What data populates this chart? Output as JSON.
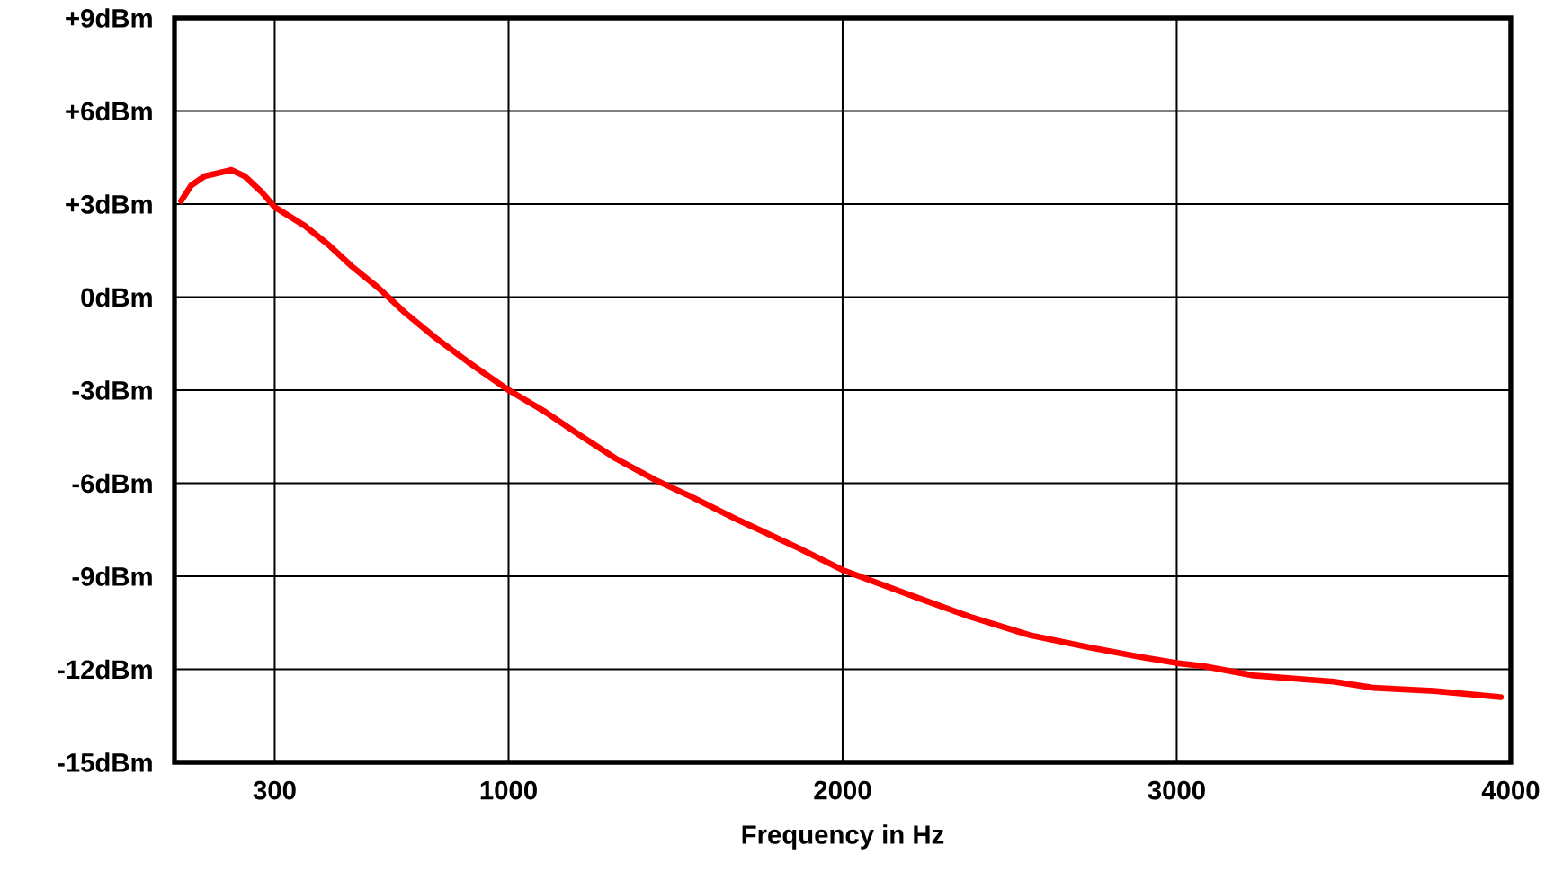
{
  "chart_data": {
    "type": "line",
    "xlabel": "Frequency in Hz",
    "x": [
      20,
      50,
      90,
      170,
      210,
      260,
      300,
      390,
      460,
      530,
      610,
      690,
      780,
      880,
      1000,
      1110,
      1220,
      1320,
      1440,
      1540,
      1690,
      1870,
      2000,
      2200,
      2380,
      2560,
      2740,
      2890,
      3000,
      3080,
      3230,
      3470,
      3590,
      3770,
      3970
    ],
    "series": [
      {
        "color": "#ff0000",
        "values": [
          3.1,
          3.6,
          3.9,
          4.1,
          3.9,
          3.4,
          2.9,
          2.3,
          1.7,
          1.0,
          0.3,
          -0.5,
          -1.3,
          -2.1,
          -3.0,
          -3.7,
          -4.5,
          -5.2,
          -5.9,
          -6.4,
          -7.2,
          -8.1,
          -8.8,
          -9.6,
          -10.3,
          -10.9,
          -11.3,
          -11.6,
          -11.8,
          -11.9,
          -12.2,
          -12.4,
          -12.6,
          -12.7,
          -12.9
        ]
      }
    ],
    "xlim": [
      0,
      4000
    ],
    "xticks": [
      300,
      1000,
      2000,
      3000,
      4000
    ],
    "ylim": [
      -15,
      9
    ],
    "yticks": [
      {
        "value": 9,
        "label": "+9dBm"
      },
      {
        "value": 6,
        "label": "+6dBm"
      },
      {
        "value": 3,
        "label": "+3dBm"
      },
      {
        "value": 0,
        "label": "0dBm"
      },
      {
        "value": -3,
        "label": "-3dBm"
      },
      {
        "value": -6,
        "label": "-6dBm"
      },
      {
        "value": -9,
        "label": "-9dBm"
      },
      {
        "value": -12,
        "label": "-12dBm"
      },
      {
        "value": -15,
        "label": "-15dBm"
      }
    ],
    "grid": true,
    "marker": "none",
    "line_style": "solid"
  }
}
